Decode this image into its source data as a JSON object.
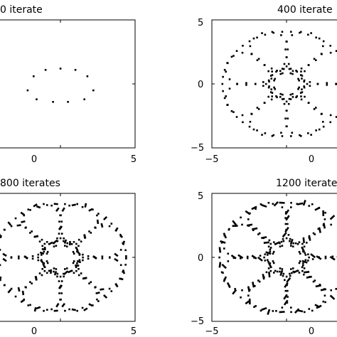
{
  "chart_data": [
    {
      "type": "scatter",
      "title": "0 iterate",
      "xlim": [
        -5,
        5
      ],
      "ylim": [
        -5,
        5
      ],
      "xticks": [
        "0",
        "5"
      ],
      "yticks": [],
      "grid": false,
      "points": [
        [
          -2.2,
          -0.5
        ],
        [
          -1.8,
          0.6
        ],
        [
          -1.0,
          1.1
        ],
        [
          0.0,
          1.2
        ],
        [
          1.0,
          1.1
        ],
        [
          1.8,
          0.6
        ],
        [
          2.2,
          -0.5
        ],
        [
          1.6,
          -1.2
        ],
        [
          0.5,
          -1.4
        ],
        [
          -0.5,
          -1.4
        ],
        [
          -1.6,
          -1.2
        ]
      ]
    },
    {
      "type": "scatter",
      "title": "400 iterate",
      "xlim": [
        -5,
        5
      ],
      "ylim": [
        -5,
        5
      ],
      "xticks": [
        "−5",
        "0"
      ],
      "yticks": [
        "5",
        "0",
        "−5"
      ],
      "grid": false,
      "center": [
        0,
        0
      ],
      "pattern": {
        "inner_ring_radius": 1.1,
        "outer_radius": 4.3,
        "star_arms": 8
      }
    },
    {
      "type": "scatter",
      "title": "800 iterates",
      "xlim": [
        -5,
        5
      ],
      "ylim": [
        -5,
        5
      ],
      "xticks": [
        "0",
        "5"
      ],
      "yticks": [],
      "grid": false,
      "center": [
        0,
        0
      ],
      "pattern": {
        "inner_ring_radius": 1.2,
        "outer_radius": 4.4,
        "star_arms": 8
      }
    },
    {
      "type": "scatter",
      "title": "1200 iterate",
      "xlim": [
        -5,
        5
      ],
      "ylim": [
        -5,
        5
      ],
      "xticks": [
        "−5",
        "0"
      ],
      "yticks": [
        "5",
        "0",
        "−5"
      ],
      "grid": false,
      "center": [
        0,
        0
      ],
      "pattern": {
        "inner_ring_radius": 1.2,
        "outer_radius": 4.5,
        "star_arms": 8
      }
    }
  ]
}
